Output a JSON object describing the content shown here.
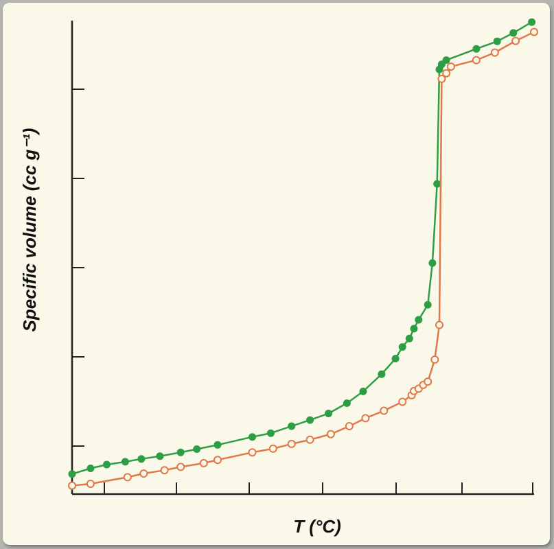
{
  "chart_data": {
    "type": "line",
    "title": "",
    "xlabel": "T (°C)",
    "ylabel": "Specific volume (cc g⁻¹)",
    "xlim": [
      0,
      1
    ],
    "ylim": [
      0,
      1
    ],
    "grid": false,
    "legend": "none",
    "series": [
      {
        "color": "#2e9e44",
        "marker": "filled-circle",
        "x": [
          0.0,
          0.04,
          0.075,
          0.115,
          0.15,
          0.19,
          0.235,
          0.27,
          0.315,
          0.39,
          0.43,
          0.475,
          0.515,
          0.555,
          0.595,
          0.63,
          0.67,
          0.7,
          0.715,
          0.73,
          0.74,
          0.75,
          0.77,
          0.78,
          0.79,
          0.795,
          0.8,
          0.81,
          0.875,
          0.92,
          0.955,
          0.995
        ],
        "y": [
          0.021,
          0.033,
          0.041,
          0.047,
          0.053,
          0.059,
          0.067,
          0.074,
          0.083,
          0.1,
          0.108,
          0.123,
          0.136,
          0.15,
          0.172,
          0.197,
          0.234,
          0.267,
          0.292,
          0.31,
          0.331,
          0.35,
          0.382,
          0.471,
          0.64,
          0.884,
          0.895,
          0.904,
          0.928,
          0.944,
          0.962,
          0.985
        ]
      },
      {
        "color": "#e07848",
        "marker": "open-circle",
        "x": [
          0.0,
          0.04,
          0.12,
          0.155,
          0.2,
          0.235,
          0.285,
          0.315,
          0.39,
          0.435,
          0.475,
          0.515,
          0.56,
          0.6,
          0.635,
          0.675,
          0.715,
          0.735,
          0.74,
          0.75,
          0.76,
          0.77,
          0.785,
          0.795,
          0.8,
          0.81,
          0.82,
          0.875,
          0.915,
          0.96,
          1.0
        ],
        "y": [
          -0.004,
          0.0,
          0.014,
          0.022,
          0.029,
          0.036,
          0.044,
          0.051,
          0.067,
          0.075,
          0.085,
          0.094,
          0.106,
          0.123,
          0.14,
          0.156,
          0.175,
          0.189,
          0.198,
          0.203,
          0.211,
          0.218,
          0.265,
          0.339,
          0.864,
          0.876,
          0.89,
          0.904,
          0.92,
          0.945,
          0.964
        ]
      }
    ]
  }
}
